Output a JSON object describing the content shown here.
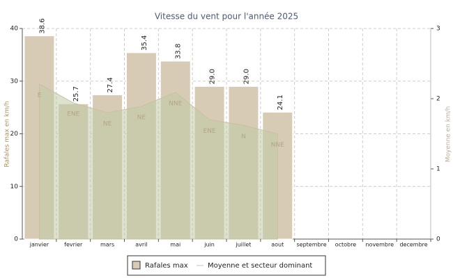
{
  "chart_data": {
    "type": "bar",
    "title": "Vitesse du vent pour l'année 2025",
    "y_label": "Rafales max en km/h",
    "y2_label": "Moyenne en km/h",
    "categories": [
      "janvier",
      "fevrier",
      "mars",
      "avril",
      "mai",
      "juin",
      "juillet",
      "aout",
      "septembre",
      "octobre",
      "novembre",
      "decembre"
    ],
    "series": [
      {
        "name": "Rafales max",
        "type": "bar",
        "color": "#d8cbb6",
        "values": [
          38.6,
          25.7,
          27.4,
          35.4,
          33.8,
          29.0,
          29.0,
          24.1,
          null,
          null,
          null,
          null
        ],
        "value_labels": [
          "38.6",
          "25.7",
          "27.4",
          "35.4",
          "33.8",
          "29.0",
          "29.0",
          "24.1",
          null,
          null,
          null,
          null
        ]
      },
      {
        "name": "Moyenne et secteur dominant",
        "type": "area",
        "axis": "y2",
        "color": "#bfcba6",
        "values": [
          2.21,
          1.94,
          1.8,
          1.89,
          2.09,
          1.7,
          1.62,
          1.5,
          null,
          null,
          null,
          null
        ],
        "sectors": [
          "E",
          "ENE",
          "NE",
          "NE",
          "NNE",
          "ENE",
          "N",
          "NNE",
          null,
          null,
          null,
          null
        ]
      }
    ],
    "ylim": [
      0,
      40
    ],
    "yticks": [
      0,
      10,
      20,
      30,
      40
    ],
    "y2lim": [
      0,
      3
    ],
    "y2ticks": [
      0,
      1,
      2,
      3
    ],
    "grid": true
  }
}
